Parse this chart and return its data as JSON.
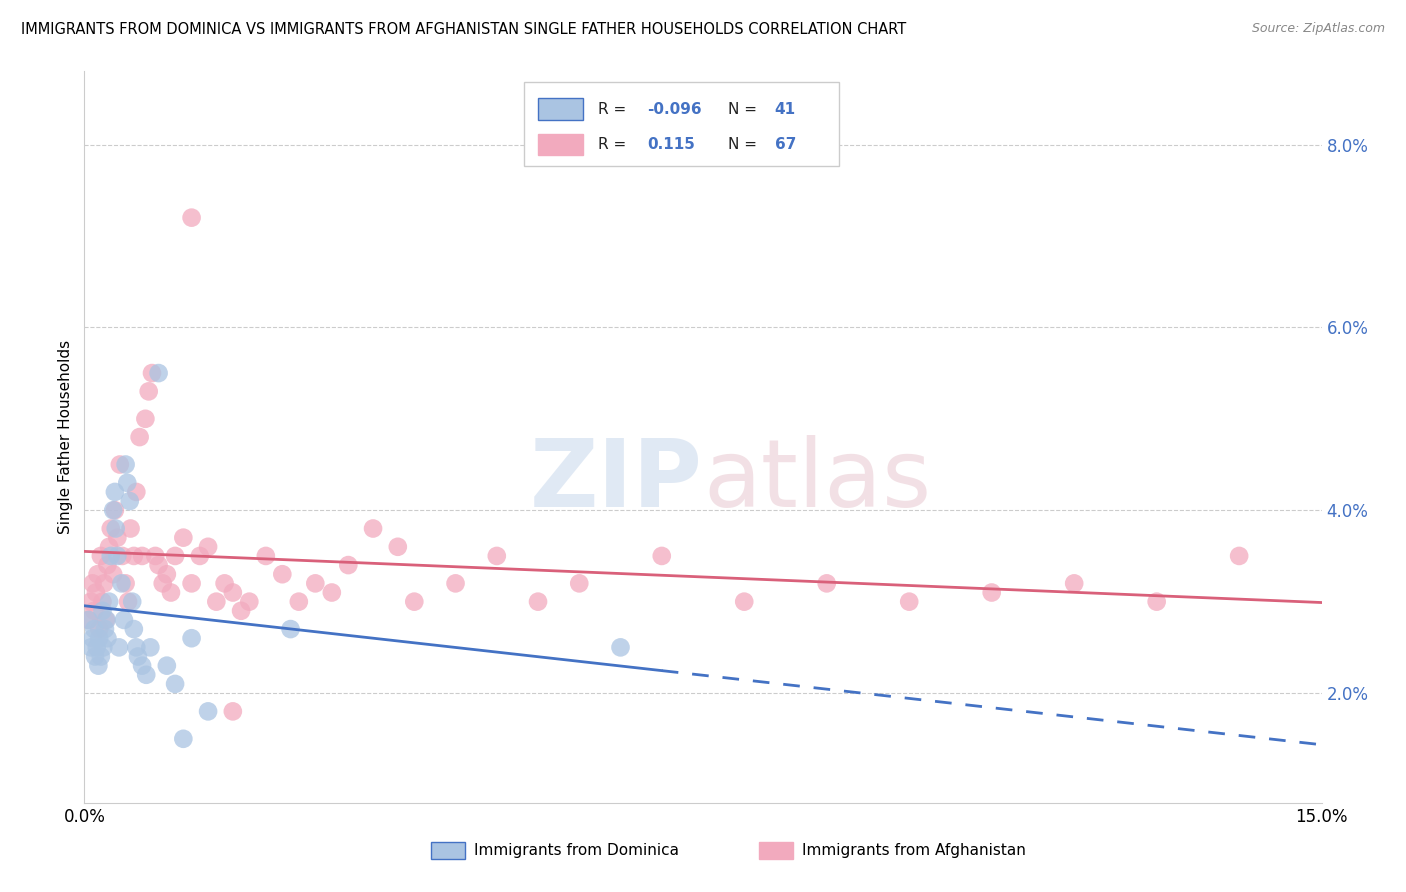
{
  "title": "IMMIGRANTS FROM DOMINICA VS IMMIGRANTS FROM AFGHANISTAN SINGLE FATHER HOUSEHOLDS CORRELATION CHART",
  "source": "Source: ZipAtlas.com",
  "ylabel": "Single Father Households",
  "xlim": [
    0.0,
    15.0
  ],
  "ylim": [
    0.8,
    8.8
  ],
  "yticks": [
    2.0,
    4.0,
    6.0,
    8.0
  ],
  "ytick_labels": [
    "2.0%",
    "4.0%",
    "6.0%",
    "8.0%"
  ],
  "xtick_labels": [
    "0.0%",
    "15.0%"
  ],
  "legend_R1": "-0.096",
  "legend_N1": "41",
  "legend_R2": "0.115",
  "legend_N2": "67",
  "color_dominica": "#aac4e2",
  "color_afghanistan": "#f2aabe",
  "line_color_dominica": "#4472c4",
  "line_color_afghanistan": "#d9607a",
  "watermark_zip": "ZIP",
  "watermark_atlas": "atlas",
  "bg_color": "#ffffff",
  "dom_x": [
    0.05,
    0.08,
    0.1,
    0.12,
    0.13,
    0.15,
    0.17,
    0.18,
    0.2,
    0.22,
    0.23,
    0.25,
    0.27,
    0.28,
    0.3,
    0.32,
    0.35,
    0.37,
    0.38,
    0.4,
    0.42,
    0.45,
    0.48,
    0.5,
    0.52,
    0.55,
    0.58,
    0.6,
    0.63,
    0.65,
    0.7,
    0.75,
    0.8,
    0.9,
    1.0,
    1.1,
    1.2,
    1.3,
    1.5,
    2.5,
    6.5
  ],
  "dom_y": [
    2.8,
    2.5,
    2.6,
    2.7,
    2.4,
    2.5,
    2.3,
    2.6,
    2.4,
    2.9,
    2.5,
    2.7,
    2.8,
    2.6,
    3.0,
    3.5,
    4.0,
    4.2,
    3.8,
    3.5,
    2.5,
    3.2,
    2.8,
    4.5,
    4.3,
    4.1,
    3.0,
    2.7,
    2.5,
    2.4,
    2.3,
    2.2,
    2.5,
    5.5,
    2.3,
    2.1,
    1.5,
    2.6,
    1.8,
    2.7,
    2.5
  ],
  "afg_x": [
    0.05,
    0.08,
    0.1,
    0.12,
    0.14,
    0.16,
    0.18,
    0.2,
    0.22,
    0.24,
    0.26,
    0.28,
    0.3,
    0.32,
    0.35,
    0.37,
    0.4,
    0.43,
    0.46,
    0.5,
    0.53,
    0.56,
    0.6,
    0.63,
    0.67,
    0.7,
    0.74,
    0.78,
    0.82,
    0.86,
    0.9,
    0.95,
    1.0,
    1.05,
    1.1,
    1.2,
    1.3,
    1.4,
    1.5,
    1.6,
    1.7,
    1.8,
    1.9,
    2.0,
    2.2,
    2.4,
    2.6,
    2.8,
    3.0,
    3.2,
    3.5,
    3.8,
    4.0,
    4.5,
    5.0,
    5.5,
    6.0,
    7.0,
    8.0,
    9.0,
    10.0,
    11.0,
    12.0,
    13.0,
    14.0,
    1.3,
    1.8
  ],
  "afg_y": [
    2.8,
    3.0,
    3.2,
    2.9,
    3.1,
    3.3,
    2.7,
    3.5,
    3.0,
    3.2,
    2.8,
    3.4,
    3.6,
    3.8,
    3.3,
    4.0,
    3.7,
    4.5,
    3.5,
    3.2,
    3.0,
    3.8,
    3.5,
    4.2,
    4.8,
    3.5,
    5.0,
    5.3,
    5.5,
    3.5,
    3.4,
    3.2,
    3.3,
    3.1,
    3.5,
    3.7,
    3.2,
    3.5,
    3.6,
    3.0,
    3.2,
    3.1,
    2.9,
    3.0,
    3.5,
    3.3,
    3.0,
    3.2,
    3.1,
    3.4,
    3.8,
    3.6,
    3.0,
    3.2,
    3.5,
    3.0,
    3.2,
    3.5,
    3.0,
    3.2,
    3.0,
    3.1,
    3.2,
    3.0,
    3.5,
    7.2,
    1.8
  ]
}
